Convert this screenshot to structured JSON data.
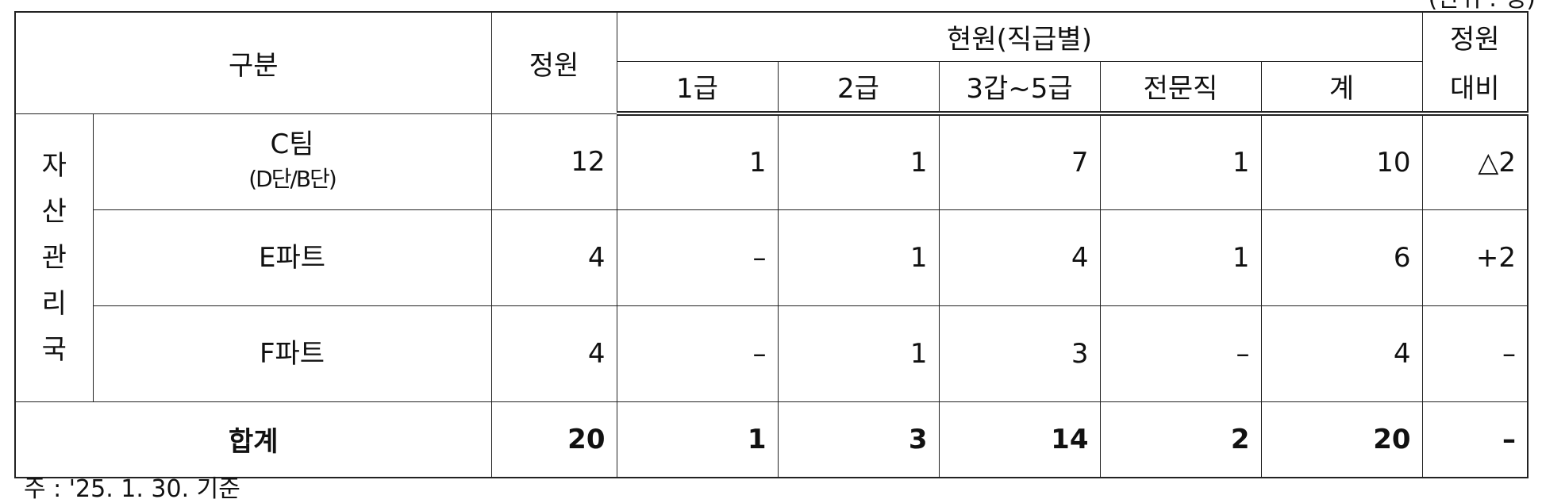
{
  "unit_note": "(단위 : 명)",
  "footnote": "주 : '25. 1. 30. 기준",
  "header": {
    "category": "구분",
    "quota": "정원",
    "current_group": "현원(직급별)",
    "grade1": "1급",
    "grade2": "2급",
    "grade3to5": "3갑~5급",
    "specialist": "전문직",
    "subtotal": "계",
    "vs_quota_line1": "정원",
    "vs_quota_line2": "대비"
  },
  "group_label": [
    "자",
    "산",
    "관",
    "리",
    "국"
  ],
  "rows": [
    {
      "name_line1": "C팀",
      "name_line2": "(D단/B단)",
      "quota": "12",
      "grade1": "1",
      "grade2": "1",
      "grade3to5": "7",
      "specialist": "1",
      "subtotal": "10",
      "vs_quota": "△2"
    },
    {
      "name_line1": "E파트",
      "name_line2": "",
      "quota": "4",
      "grade1": "–",
      "grade2": "1",
      "grade3to5": "4",
      "specialist": "1",
      "subtotal": "6",
      "vs_quota": "+2"
    },
    {
      "name_line1": "F파트",
      "name_line2": "",
      "quota": "4",
      "grade1": "–",
      "grade2": "1",
      "grade3to5": "3",
      "specialist": "–",
      "subtotal": "4",
      "vs_quota": "–"
    }
  ],
  "total": {
    "label": "합계",
    "quota": "20",
    "grade1": "1",
    "grade2": "3",
    "grade3to5": "14",
    "specialist": "2",
    "subtotal": "20",
    "vs_quota": "–"
  }
}
